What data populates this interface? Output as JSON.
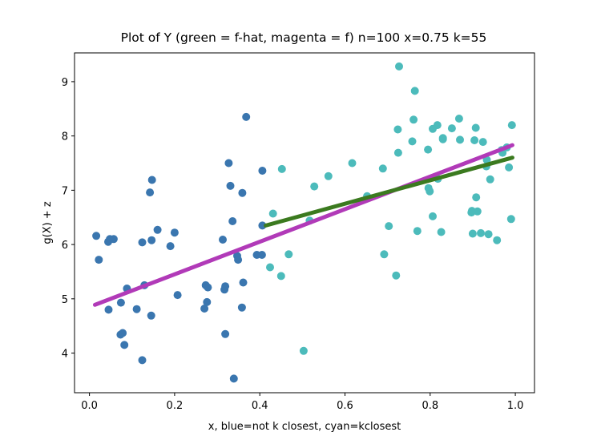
{
  "chart_data": {
    "type": "scatter",
    "title": "Plot of Y (green = f-hat, magenta = f)  n=100 x=0.75 k=55",
    "xlabel": "x, blue=not k closest, cyan=kclosest",
    "ylabel": "g(X) + z",
    "xlim": [
      -0.035,
      1.045
    ],
    "ylim": [
      3.27,
      9.53
    ],
    "xticks": [
      0.0,
      0.2,
      0.4,
      0.6,
      0.8,
      1.0
    ],
    "xtick_labels": [
      "0.0",
      "0.2",
      "0.4",
      "0.6",
      "0.8",
      "1.0"
    ],
    "yticks": [
      4,
      5,
      6,
      7,
      8,
      9
    ],
    "ytick_labels": [
      "4",
      "5",
      "6",
      "7",
      "8",
      "9"
    ],
    "grid": false,
    "colors": {
      "not_k_closest": "#3a76af",
      "k_closest": "#4cbbbb",
      "f_hat": "#3b7a1f",
      "f": "#b13ab8"
    },
    "series": [
      {
        "key": "not_k_closest",
        "points": [
          [
            0.016,
            6.16
          ],
          [
            0.022,
            5.72
          ],
          [
            0.044,
            6.05
          ],
          [
            0.048,
            6.1
          ],
          [
            0.057,
            6.1
          ],
          [
            0.045,
            4.8
          ],
          [
            0.073,
            4.34
          ],
          [
            0.078,
            4.37
          ],
          [
            0.074,
            4.93
          ],
          [
            0.082,
            4.15
          ],
          [
            0.088,
            5.19
          ],
          [
            0.111,
            4.81
          ],
          [
            0.124,
            3.87
          ],
          [
            0.124,
            6.04
          ],
          [
            0.129,
            5.25
          ],
          [
            0.142,
            6.96
          ],
          [
            0.147,
            7.19
          ],
          [
            0.146,
            6.08
          ],
          [
            0.145,
            4.69
          ],
          [
            0.16,
            6.27
          ],
          [
            0.19,
            5.97
          ],
          [
            0.2,
            6.22
          ],
          [
            0.207,
            5.07
          ],
          [
            0.27,
            4.82
          ],
          [
            0.273,
            5.25
          ],
          [
            0.278,
            5.21
          ],
          [
            0.276,
            4.94
          ],
          [
            0.313,
            6.09
          ],
          [
            0.317,
            5.17
          ],
          [
            0.319,
            5.23
          ],
          [
            0.319,
            4.35
          ],
          [
            0.327,
            7.5
          ],
          [
            0.331,
            7.08
          ],
          [
            0.336,
            6.43
          ],
          [
            0.339,
            3.53
          ],
          [
            0.347,
            5.79
          ],
          [
            0.349,
            5.72
          ],
          [
            0.358,
            4.84
          ],
          [
            0.361,
            5.3
          ],
          [
            0.359,
            6.95
          ],
          [
            0.368,
            8.35
          ],
          [
            0.393,
            5.81
          ],
          [
            0.405,
            5.81
          ],
          [
            0.406,
            7.36
          ],
          [
            0.406,
            6.35
          ]
        ]
      },
      {
        "key": "k_closest",
        "points": [
          [
            0.424,
            5.58
          ],
          [
            0.431,
            6.57
          ],
          [
            0.45,
            5.42
          ],
          [
            0.452,
            7.39
          ],
          [
            0.468,
            5.82
          ],
          [
            0.503,
            4.04
          ],
          [
            0.517,
            6.44
          ],
          [
            0.528,
            7.07
          ],
          [
            0.561,
            7.26
          ],
          [
            0.617,
            7.5
          ],
          [
            0.652,
            6.89
          ],
          [
            0.689,
            7.4
          ],
          [
            0.692,
            5.82
          ],
          [
            0.703,
            6.34
          ],
          [
            0.72,
            5.43
          ],
          [
            0.724,
            8.12
          ],
          [
            0.725,
            7.69
          ],
          [
            0.727,
            9.28
          ],
          [
            0.758,
            7.9
          ],
          [
            0.761,
            8.3
          ],
          [
            0.764,
            8.83
          ],
          [
            0.77,
            6.25
          ],
          [
            0.795,
            7.75
          ],
          [
            0.796,
            7.04
          ],
          [
            0.799,
            6.98
          ],
          [
            0.806,
            8.13
          ],
          [
            0.806,
            6.52
          ],
          [
            0.817,
            8.2
          ],
          [
            0.818,
            7.21
          ],
          [
            0.826,
            6.23
          ],
          [
            0.83,
            7.96
          ],
          [
            0.83,
            7.94
          ],
          [
            0.851,
            8.14
          ],
          [
            0.868,
            8.32
          ],
          [
            0.87,
            7.93
          ],
          [
            0.897,
            6.59
          ],
          [
            0.898,
            6.62
          ],
          [
            0.9,
            6.2
          ],
          [
            0.904,
            7.92
          ],
          [
            0.907,
            8.15
          ],
          [
            0.911,
            6.61
          ],
          [
            0.908,
            6.87
          ],
          [
            0.919,
            6.21
          ],
          [
            0.924,
            7.89
          ],
          [
            0.932,
            7.44
          ],
          [
            0.933,
            7.56
          ],
          [
            0.937,
            6.19
          ],
          [
            0.941,
            7.2
          ],
          [
            0.957,
            6.08
          ],
          [
            0.968,
            7.74
          ],
          [
            0.97,
            7.69
          ],
          [
            0.98,
            7.79
          ],
          [
            0.985,
            7.42
          ],
          [
            0.99,
            6.47
          ],
          [
            0.992,
            8.2
          ]
        ]
      }
    ],
    "lines": [
      {
        "key": "f",
        "points": [
          [
            0.013,
            4.89
          ],
          [
            0.993,
            7.83
          ]
        ]
      },
      {
        "key": "f_hat",
        "points": [
          [
            0.414,
            6.35
          ],
          [
            0.993,
            7.6
          ]
        ]
      }
    ]
  }
}
